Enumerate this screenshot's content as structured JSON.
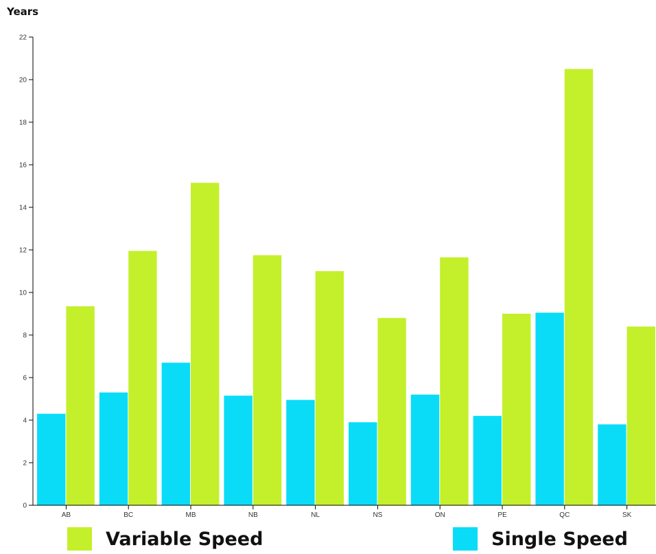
{
  "chart_data": {
    "type": "bar",
    "ylabel": "Years",
    "ylim": [
      0,
      22
    ],
    "yticks": [
      "0",
      "2",
      "4",
      "6",
      "8",
      "10",
      "12",
      "14",
      "16",
      "18",
      "20",
      "22"
    ],
    "categories": [
      "AB",
      "BC",
      "MB",
      "NB",
      "NL",
      "NS",
      "ON",
      "PE",
      "QC",
      "SK"
    ],
    "series": [
      {
        "name": "Single Speed",
        "color": "#0adcf8",
        "values": [
          4.3,
          5.3,
          6.7,
          5.15,
          4.95,
          3.9,
          5.2,
          4.2,
          9.05,
          3.8
        ]
      },
      {
        "name": "Variable Speed",
        "color": "#c3f02a",
        "values": [
          9.35,
          11.95,
          15.15,
          11.75,
          11.0,
          8.8,
          11.65,
          9.0,
          20.5,
          8.4
        ]
      }
    ],
    "legend": {
      "variable_label": "Variable Speed",
      "single_label": "Single Speed",
      "placement": "bottom"
    }
  }
}
